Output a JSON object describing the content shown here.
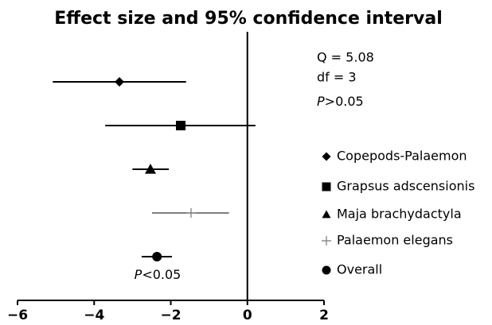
{
  "chart_data": {
    "type": "forest",
    "title": "Effect size and 95% confidence interval",
    "series": [
      {
        "name": "Copepods-Palaemon",
        "marker": "diamond",
        "color": "#000000",
        "value": -3.34,
        "ci": [
          -5.08,
          -1.6
        ]
      },
      {
        "name": "Grapsus adscensionis",
        "marker": "square",
        "color": "#000000",
        "value": -1.74,
        "ci": [
          -3.71,
          0.21
        ]
      },
      {
        "name": "Maja brachydactyla",
        "marker": "triangle",
        "color": "#000000",
        "value": -2.53,
        "ci": [
          -3.0,
          -2.05
        ]
      },
      {
        "name": "Palaemon elegans",
        "marker": "plus",
        "color": "#000000",
        "value": -1.47,
        "ci": [
          -2.49,
          -0.48
        ]
      },
      {
        "name": "Overall",
        "marker": "circle",
        "color": "#000000",
        "value": -2.36,
        "ci": [
          -2.76,
          -1.97
        ]
      }
    ],
    "xlim": [
      -6,
      2
    ],
    "xticks": [
      {
        "value": -6,
        "label": "−6"
      },
      {
        "value": -4,
        "label": "−4"
      },
      {
        "value": -2,
        "label": "−2"
      },
      0,
      2
    ],
    "stats": [
      "Q = 5.08",
      "df = 3",
      "P>0.05"
    ],
    "overall_note": "P<0.05"
  }
}
